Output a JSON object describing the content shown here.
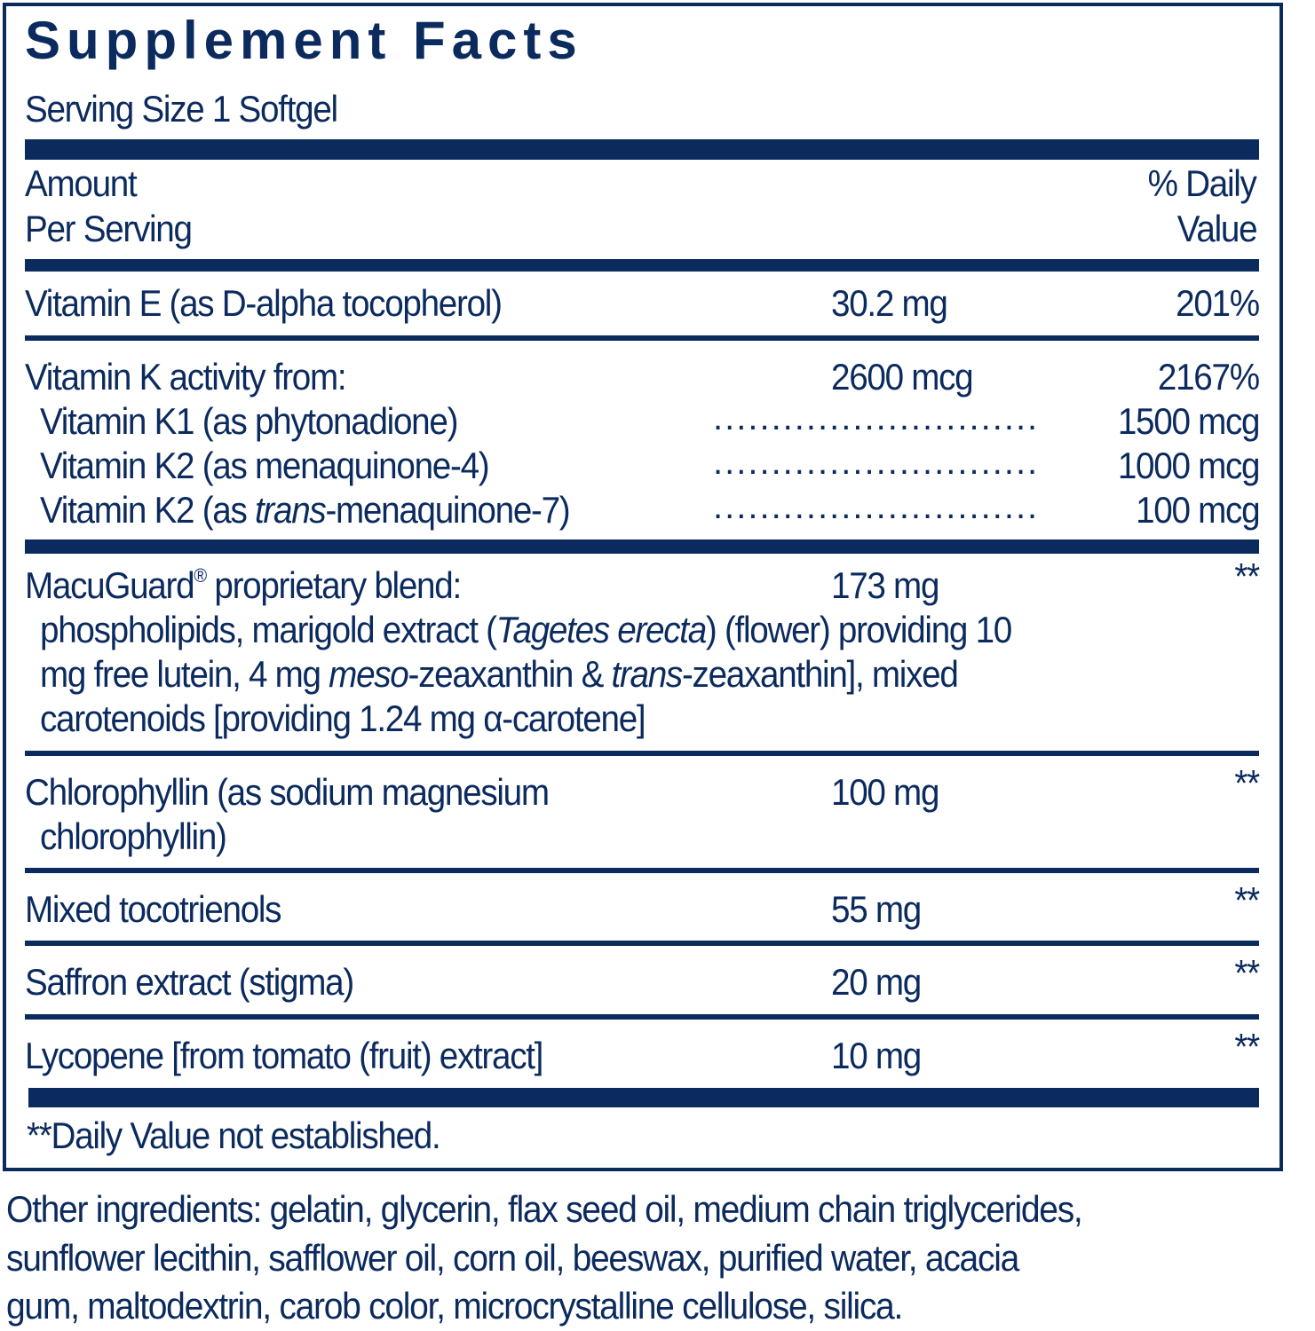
{
  "title": "Supplement Facts",
  "serving_size": "Serving Size 1 Softgel",
  "header": {
    "amount_line1": "Amount",
    "amount_line2": "Per Serving",
    "dv_line1": "% Daily",
    "dv_line2": "Value"
  },
  "rows": {
    "vit_e": {
      "name": "Vitamin E (as D-alpha tocopherol)",
      "amount": "30.2 mg",
      "dv": "201%"
    },
    "vit_k": {
      "name": "Vitamin K activity from:",
      "amount": "2600 mcg",
      "dv": "2167%"
    },
    "k1": {
      "name": "Vitamin K1 (as phytonadione)",
      "amount": "1500 mcg"
    },
    "k2_4": {
      "name": "Vitamin K2 (as menaquinone-4)",
      "amount": "1000 mcg"
    },
    "k2_7": {
      "name_pre": "Vitamin K2 (as ",
      "name_italic": "trans",
      "name_post": "-menaquinone-7)",
      "amount": "100 mcg"
    },
    "macuguard": {
      "name": "MacuGuard",
      "reg": "®",
      "name_post": " proprietary blend:",
      "amount": "173 mg",
      "dv": "**",
      "l1_a": "phospholipids, marigold extract (",
      "l1_i": "Tagetes erecta",
      "l1_b": ") (flower) providing 10",
      "l2_a": "mg free lutein, 4 mg ",
      "l2_i1": "meso",
      "l2_b": "-zeaxanthin & ",
      "l2_i2": "trans",
      "l2_c": "-zeaxanthin], mixed",
      "l3": "carotenoids [providing 1.24 mg α-carotene]"
    },
    "chloro": {
      "name1": "Chlorophyllin (as sodium magnesium",
      "name2": "chlorophyllin)",
      "amount": "100 mg",
      "dv": "**"
    },
    "toco": {
      "name": "Mixed tocotrienols",
      "amount": "55 mg",
      "dv": "**"
    },
    "saffron": {
      "name": "Saffron extract (stigma)",
      "amount": "20 mg",
      "dv": "**"
    },
    "lycopene": {
      "name": "Lycopene [from tomato (fruit) extract]",
      "amount": "10 mg",
      "dv": "**"
    }
  },
  "leader_dots": "................................................",
  "footnote": "**Daily Value not established.",
  "other_ingredients": {
    "l1": "Other ingredients: gelatin, glycerin, flax seed oil, medium chain triglycerides,",
    "l2": "sunflower lecithin, safflower oil, corn oil, beeswax, purified water, acacia",
    "l3": "gum, maltodextrin, carob color, microcrystalline cellulose, silica."
  },
  "colors": {
    "navy": "#0b2a5e"
  }
}
